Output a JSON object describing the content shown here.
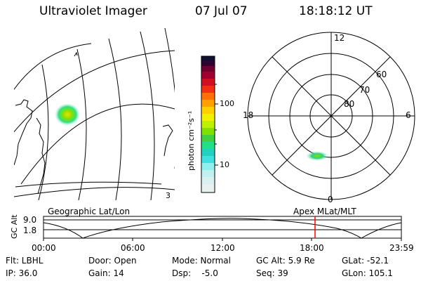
{
  "header": {
    "instrument": "Ultraviolet Imager",
    "date": "07 Jul 07",
    "time": "18:18:12 UT"
  },
  "map_panel": {
    "corner_label": "3",
    "caption": "Geographic Lat/Lon"
  },
  "colorbar": {
    "unit_label": "photon cm⁻²s⁻¹",
    "tick_100": "100",
    "tick_10": "10"
  },
  "polar_plot": {
    "mlt_top": "12",
    "mlt_left": "18",
    "mlt_right": "6",
    "mlt_bottom": "0",
    "lat_60": "60",
    "lat_70": "70",
    "lat_80": "80",
    "caption": "Apex MLat/MLT"
  },
  "altitude_strip": {
    "ylabel": "GC Alt",
    "ytick_top": "9.0",
    "ytick_bottom": "1.8",
    "xticks": [
      "00:00",
      "06:00",
      "12:00",
      "18:00",
      "23:59"
    ],
    "marker_color": "#ff0000"
  },
  "status": {
    "filter": "Flt: LBHL",
    "door": "Door: Open",
    "mode": "Mode: Normal",
    "gc_alt": "GC Alt: 5.9 Re",
    "glat": "GLat: -52.1",
    "ip": "IP: 36.0",
    "gain": "Gain: 14",
    "dsp": "Dsp:    -5.0",
    "seq": "Seq: 39",
    "glon": "GLon: 105.1"
  }
}
